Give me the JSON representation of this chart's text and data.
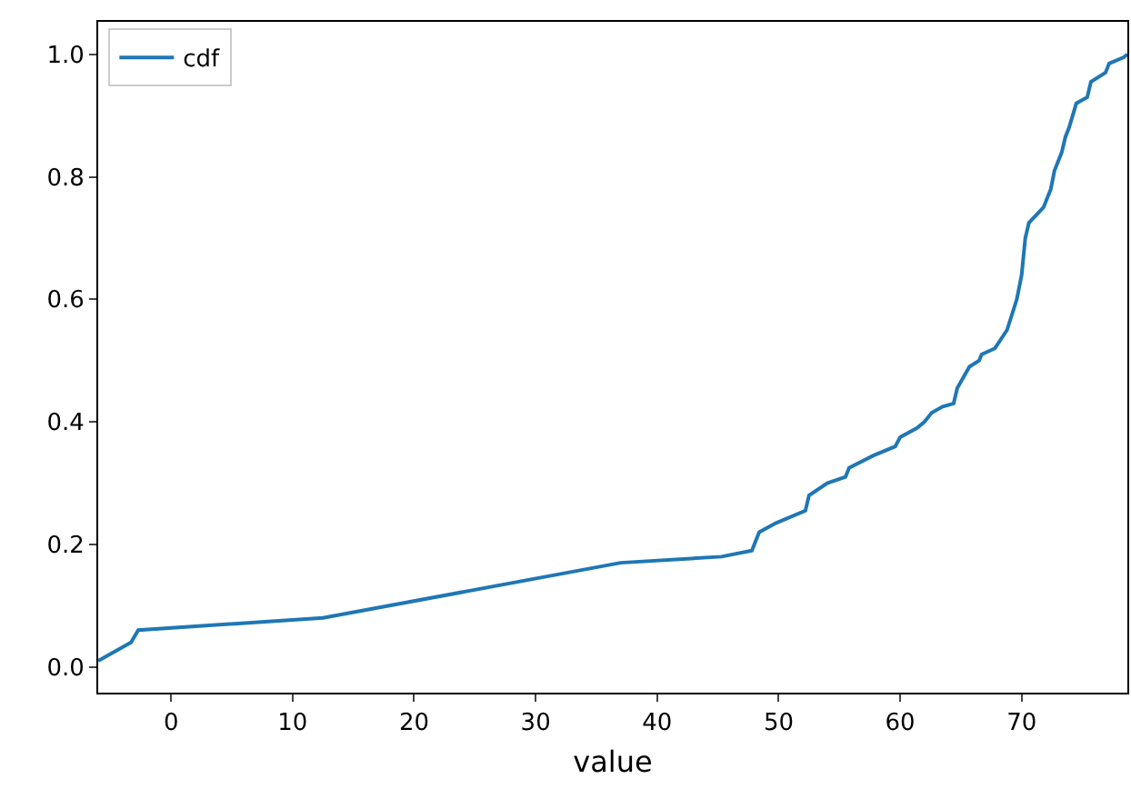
{
  "chart_data": {
    "type": "line",
    "xlabel": "value",
    "xlim": [
      -6,
      78.7
    ],
    "ylim": [
      -0.042,
      1.053
    ],
    "xticks": [
      0,
      10,
      20,
      30,
      40,
      50,
      60,
      70
    ],
    "yticks": [
      {
        "value": 0,
        "label": "0.0"
      },
      {
        "value": 0.2,
        "label": "0.2"
      },
      {
        "value": 0.4,
        "label": "0.4"
      },
      {
        "value": 0.6,
        "label": "0.6"
      },
      {
        "value": 0.8,
        "label": "0.8"
      },
      {
        "value": 1,
        "label": "1.0"
      }
    ],
    "grid": false,
    "legend": "top left",
    "marker": "none",
    "line_style": "solid",
    "series": [
      {
        "name": "cdf",
        "color": "#1f77b4",
        "x": [
          -6,
          -5.1,
          -3.3,
          -2.7,
          12.5,
          37,
          45.3,
          47.8,
          48.4,
          49.8,
          52.2,
          52.5,
          54,
          55.5,
          55.8,
          57.8,
          59.6,
          60,
          61.4,
          62,
          62.6,
          63.5,
          64.4,
          64.7,
          65.7,
          66.5,
          66.7,
          67.8,
          68.8,
          69.6,
          70,
          70.3,
          70.6,
          71.8,
          72.4,
          72.7,
          73.3,
          73.6,
          73.9,
          74.2,
          74.5,
          75.4,
          75.7,
          76.9,
          77.2,
          78.4,
          78.7
        ],
        "values": [
          0.01,
          0.02,
          0.04,
          0.06,
          0.08,
          0.17,
          0.18,
          0.19,
          0.22,
          0.235,
          0.255,
          0.28,
          0.3,
          0.31,
          0.325,
          0.345,
          0.36,
          0.375,
          0.39,
          0.4,
          0.415,
          0.425,
          0.43,
          0.455,
          0.49,
          0.5,
          0.51,
          0.52,
          0.55,
          0.6,
          0.64,
          0.7,
          0.725,
          0.75,
          0.78,
          0.81,
          0.84,
          0.865,
          0.88,
          0.9,
          0.92,
          0.93,
          0.955,
          0.97,
          0.985,
          0.995,
          1.0
        ]
      }
    ]
  }
}
